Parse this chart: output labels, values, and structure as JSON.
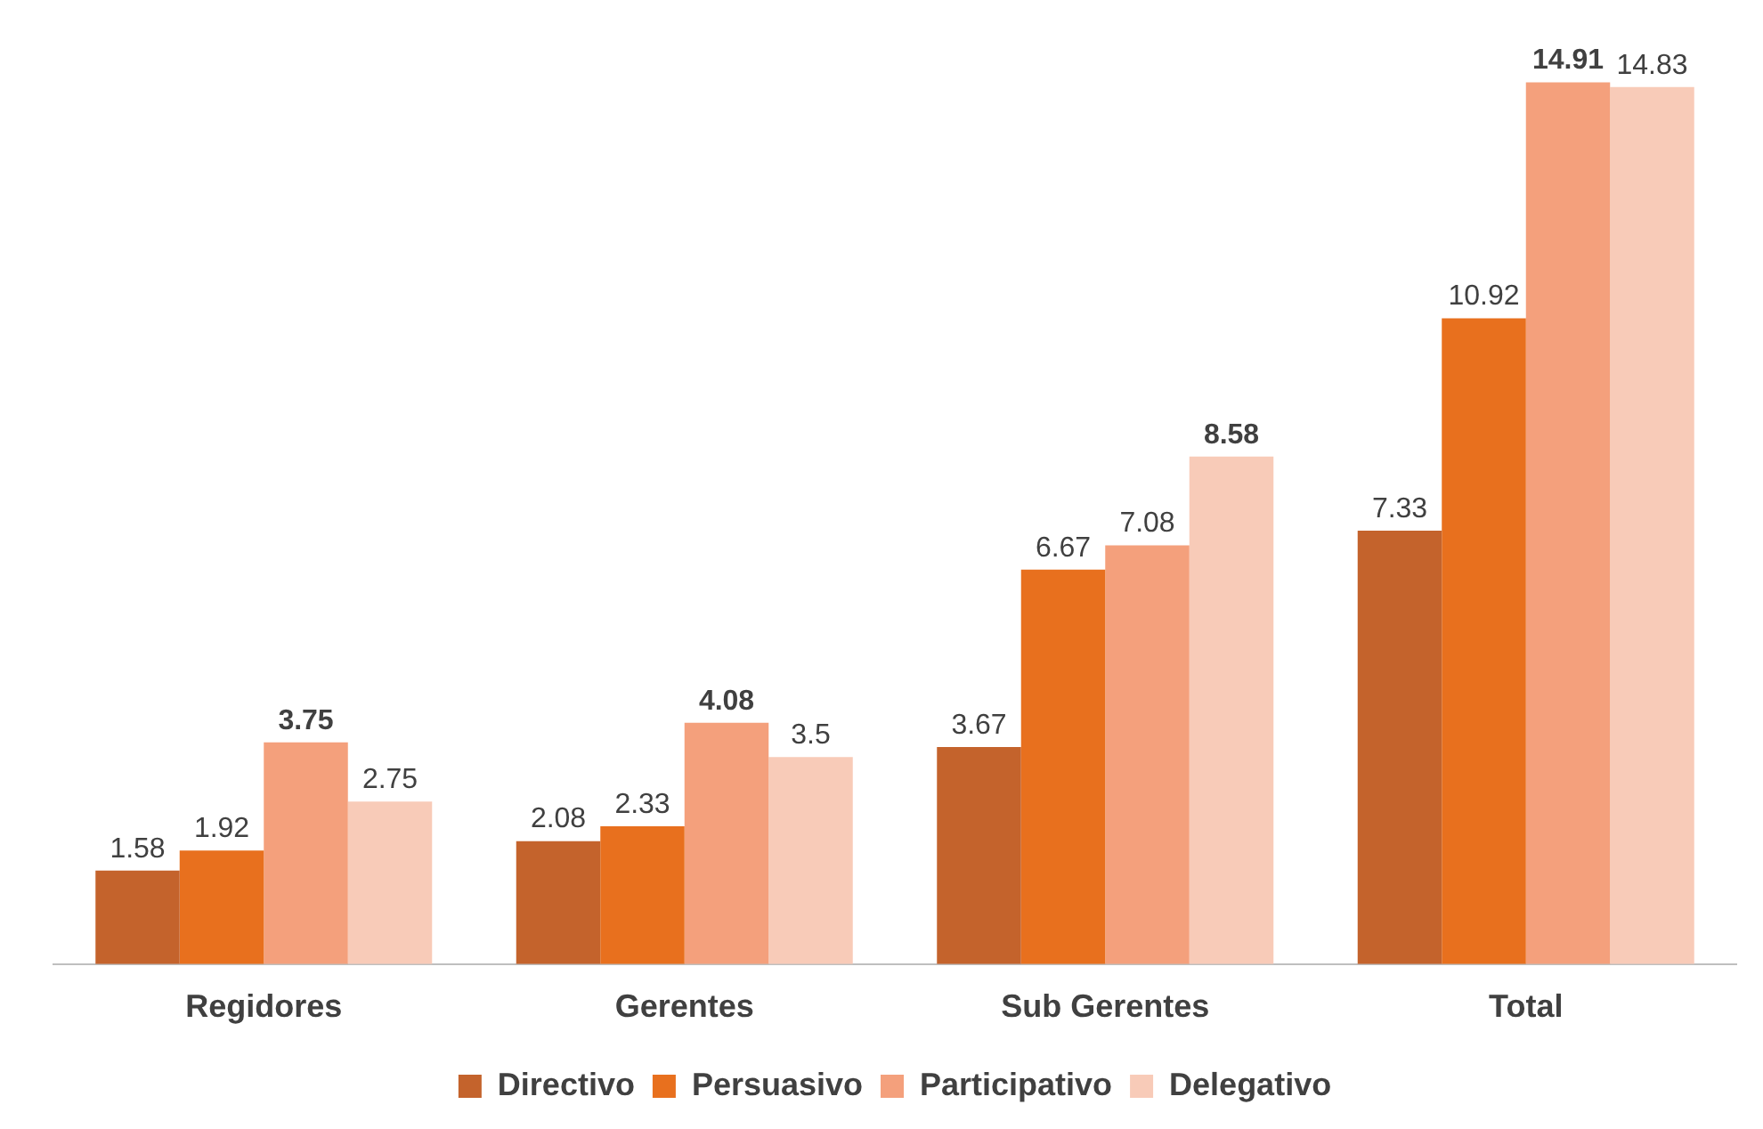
{
  "chart_data": {
    "type": "bar",
    "categories": [
      "Regidores",
      "Gerentes",
      "Sub Gerentes",
      "Total"
    ],
    "series": [
      {
        "name": "Directivo",
        "color": "#c4632c",
        "values": [
          1.58,
          2.08,
          3.67,
          7.33
        ]
      },
      {
        "name": "Persuasivo",
        "color": "#e8701e",
        "values": [
          1.92,
          2.33,
          6.67,
          10.92
        ]
      },
      {
        "name": "Participativo",
        "color": "#f4a07c",
        "values": [
          3.75,
          4.08,
          7.08,
          14.91
        ]
      },
      {
        "name": "Delegativo",
        "color": "#f8cbb8",
        "values": [
          2.75,
          3.5,
          8.58,
          14.83
        ]
      }
    ],
    "data_labels": true,
    "legend": "bottom",
    "grid": false
  }
}
